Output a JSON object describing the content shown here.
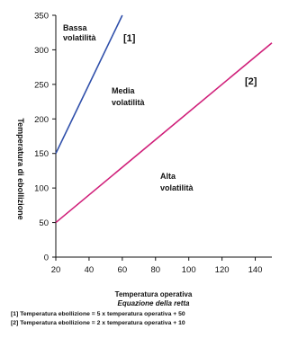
{
  "chart_data": {
    "type": "line",
    "title": "",
    "xlabel": "Temperatura operativa",
    "ylabel": "Temperatura di ebollizione",
    "xlim": [
      20,
      150
    ],
    "ylim": [
      0,
      350
    ],
    "xticks": [
      "20",
      "40",
      "60",
      "80",
      "100",
      "120",
      "140"
    ],
    "yticks": [
      "0",
      "50",
      "100",
      "150",
      "200",
      "250",
      "300",
      "350"
    ],
    "series": [
      {
        "name": "[1]",
        "color": "#2f4faa",
        "x": [
          20,
          60
        ],
        "y": [
          150,
          350
        ]
      },
      {
        "name": "[2]",
        "color": "#d0207a",
        "x": [
          20,
          150
        ],
        "y": [
          50,
          310
        ]
      }
    ],
    "regions": [
      {
        "line1": "Bassa",
        "line2": "volatilità"
      },
      {
        "line1": "Media",
        "line2": "volatilità"
      },
      {
        "line1": "Alta",
        "line2": "volatilità"
      }
    ],
    "legend_title": "Equazione della retta",
    "equations": [
      "[1]  Temperatura ebollizione = 5 x temperatura operativa + 50",
      "[2]  Temperatura ebollizione = 2 x temperatura operativa + 10"
    ]
  }
}
